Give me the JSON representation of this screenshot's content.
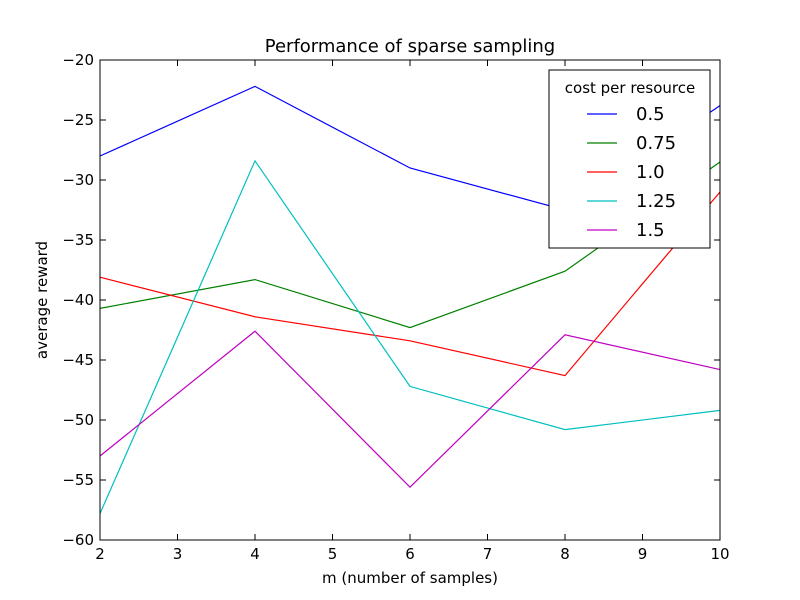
{
  "chart_data": {
    "type": "line",
    "title": "Performance of sparse sampling",
    "xlabel": "m (number of samples)",
    "ylabel": "average reward",
    "x": [
      2,
      4,
      6,
      8,
      10
    ],
    "xlim": [
      2,
      10
    ],
    "ylim": [
      -60,
      -20
    ],
    "xticks": [
      2,
      3,
      4,
      5,
      6,
      7,
      8,
      9,
      10
    ],
    "yticks": [
      -60,
      -55,
      -50,
      -45,
      -40,
      -35,
      -30,
      -25,
      -20
    ],
    "xtick_labels": [
      "2",
      "3",
      "4",
      "5",
      "6",
      "7",
      "8",
      "9",
      "10"
    ],
    "ytick_labels": [
      "−60",
      "−55",
      "−50",
      "−45",
      "−40",
      "−35",
      "−30",
      "−25",
      "−20"
    ],
    "grid": false,
    "legend": {
      "title": "cost per resource",
      "position": "top-right"
    },
    "series": [
      {
        "name": "0.5",
        "color": "#0000ff",
        "values": [
          -28.0,
          -22.2,
          -29.0,
          -32.5,
          -23.8
        ]
      },
      {
        "name": "0.75",
        "color": "#008000",
        "values": [
          -40.7,
          -38.3,
          -42.3,
          -37.6,
          -28.5
        ]
      },
      {
        "name": "1.0",
        "color": "#ff0000",
        "values": [
          -38.1,
          -41.4,
          -43.4,
          -46.3,
          -31.0
        ]
      },
      {
        "name": "1.25",
        "color": "#00bfbf",
        "values": [
          -57.8,
          -28.4,
          -47.2,
          -50.8,
          -49.2
        ]
      },
      {
        "name": "1.5",
        "color": "#bf00bf",
        "values": [
          -53.0,
          -42.6,
          -55.6,
          -42.9,
          -45.8
        ]
      }
    ]
  }
}
